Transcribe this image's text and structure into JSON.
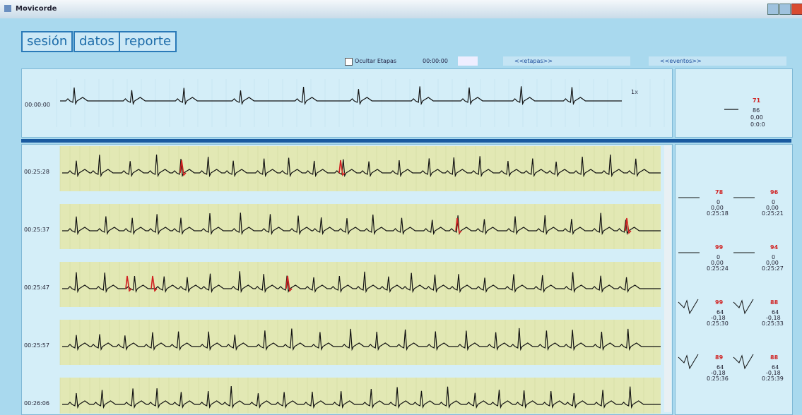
{
  "window": {
    "title": "Movicorde"
  },
  "tabs": [
    "sesión",
    "datos",
    "reporte"
  ],
  "toolbar": {
    "hide_stages": "Ocultar Etapas",
    "time": "00:00:00",
    "stages": "<<etapas>>",
    "events": "<<eventos>>"
  },
  "overview": {
    "time": "00:00:00",
    "speed": "1x",
    "beat": {
      "hr": "71",
      "a": "86",
      "b": "0,00",
      "t": "0:0:0"
    }
  },
  "strips": [
    "00:25:28",
    "00:25:37",
    "00:25:47",
    "00:25:57",
    "00:26:06"
  ],
  "beats": [
    {
      "hr": "78",
      "a": "0",
      "b": "0,00",
      "t": "0:25:18"
    },
    {
      "hr": "96",
      "a": "0",
      "b": "0,00",
      "t": "0:25:21"
    },
    {
      "hr": "99",
      "a": "0",
      "b": "0,00",
      "t": "0:25:24"
    },
    {
      "hr": "94",
      "a": "0",
      "b": "0,00",
      "t": "0:25:27"
    },
    {
      "hr": "99",
      "a": "64",
      "b": "-0,18",
      "t": "0:25:30"
    },
    {
      "hr": "88",
      "a": "64",
      "b": "-0,18",
      "t": "0:25:33"
    },
    {
      "hr": "89",
      "a": "64",
      "b": "-0,18",
      "t": "0:25:36"
    },
    {
      "hr": "88",
      "a": "64",
      "b": "-0,18",
      "t": "0:25:39"
    }
  ]
}
